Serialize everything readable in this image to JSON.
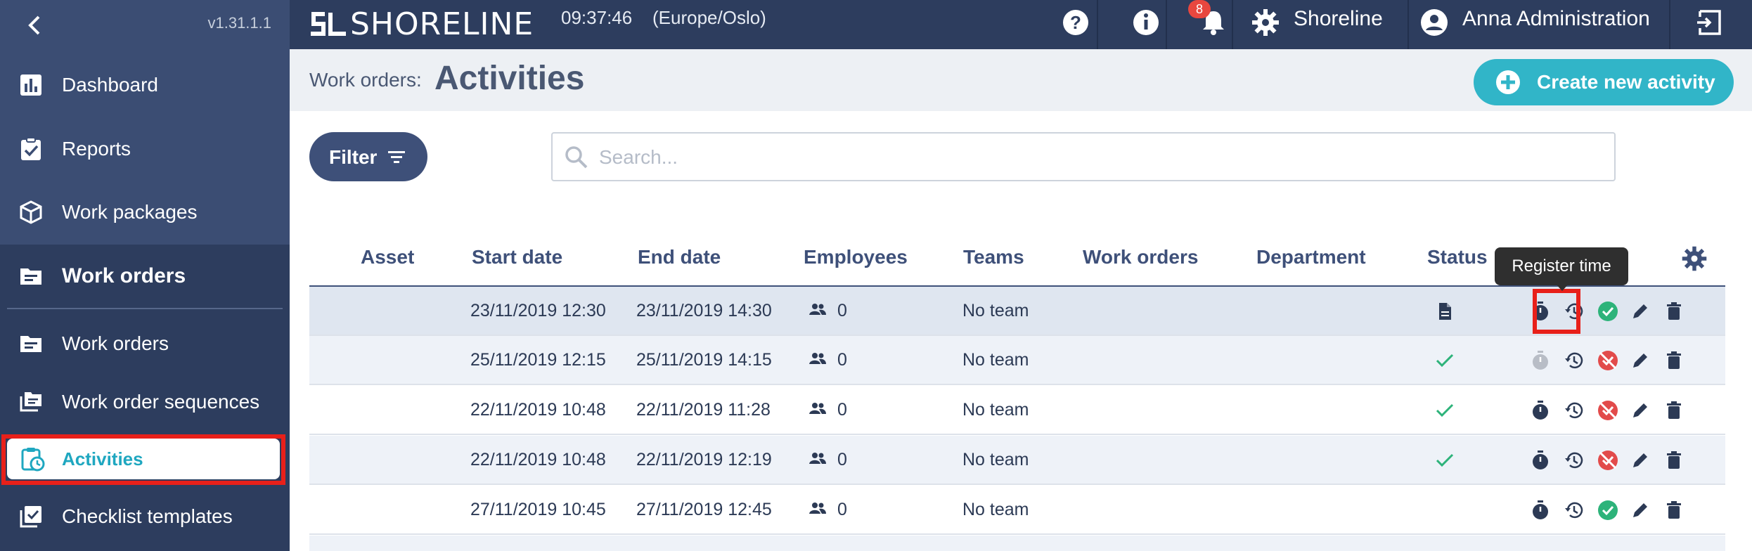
{
  "sidebar": {
    "version": "v1.31.1.1",
    "items": [
      {
        "label": "Dashboard",
        "icon": "chart-icon"
      },
      {
        "label": "Reports",
        "icon": "clipboard-check-icon"
      },
      {
        "label": "Work packages",
        "icon": "package-icon"
      },
      {
        "label": "Work orders",
        "icon": "folder-icon"
      },
      {
        "label": "Work orders",
        "icon": "folder-icon"
      },
      {
        "label": "Work order sequences",
        "icon": "folders-stack-icon"
      },
      {
        "label": "Activities",
        "icon": "clipboard-clock-icon"
      },
      {
        "label": "Checklist templates",
        "icon": "checklist-icon"
      }
    ]
  },
  "header": {
    "logo": "SHORELINE",
    "time": "09:37:46",
    "timezone": "(Europe/Oslo)",
    "notifications_count": "8",
    "org_label": "Shoreline",
    "user_label": "Anna Administration"
  },
  "page": {
    "breadcrumb": "Work orders:",
    "title": "Activities",
    "create_label": "Create new activity",
    "filter_label": "Filter",
    "search_placeholder": "Search..."
  },
  "table": {
    "columns": [
      "Asset",
      "Start date",
      "End date",
      "Employees",
      "Teams",
      "Work orders",
      "Department",
      "Status"
    ],
    "rows": [
      {
        "start": "23/11/2019 12:30",
        "end": "23/11/2019 14:30",
        "employees": "0",
        "team": "No team",
        "status": "document"
      },
      {
        "start": "25/11/2019 12:15",
        "end": "25/11/2019 14:15",
        "employees": "0",
        "team": "No team",
        "status": "check"
      },
      {
        "start": "22/11/2019 10:48",
        "end": "22/11/2019 11:28",
        "employees": "0",
        "team": "No team",
        "status": "check"
      },
      {
        "start": "22/11/2019 10:48",
        "end": "22/11/2019 12:19",
        "employees": "0",
        "team": "No team",
        "status": "check"
      },
      {
        "start": "27/11/2019 10:45",
        "end": "27/11/2019 12:45",
        "employees": "0",
        "team": "No team",
        "status": "none"
      }
    ]
  },
  "tooltip": "Register time",
  "colors": {
    "navy": "#2d3d5e",
    "accent": "#31b5c8",
    "success": "#2db37a",
    "danger": "#e24b4b",
    "highlight": "#e8201a"
  }
}
